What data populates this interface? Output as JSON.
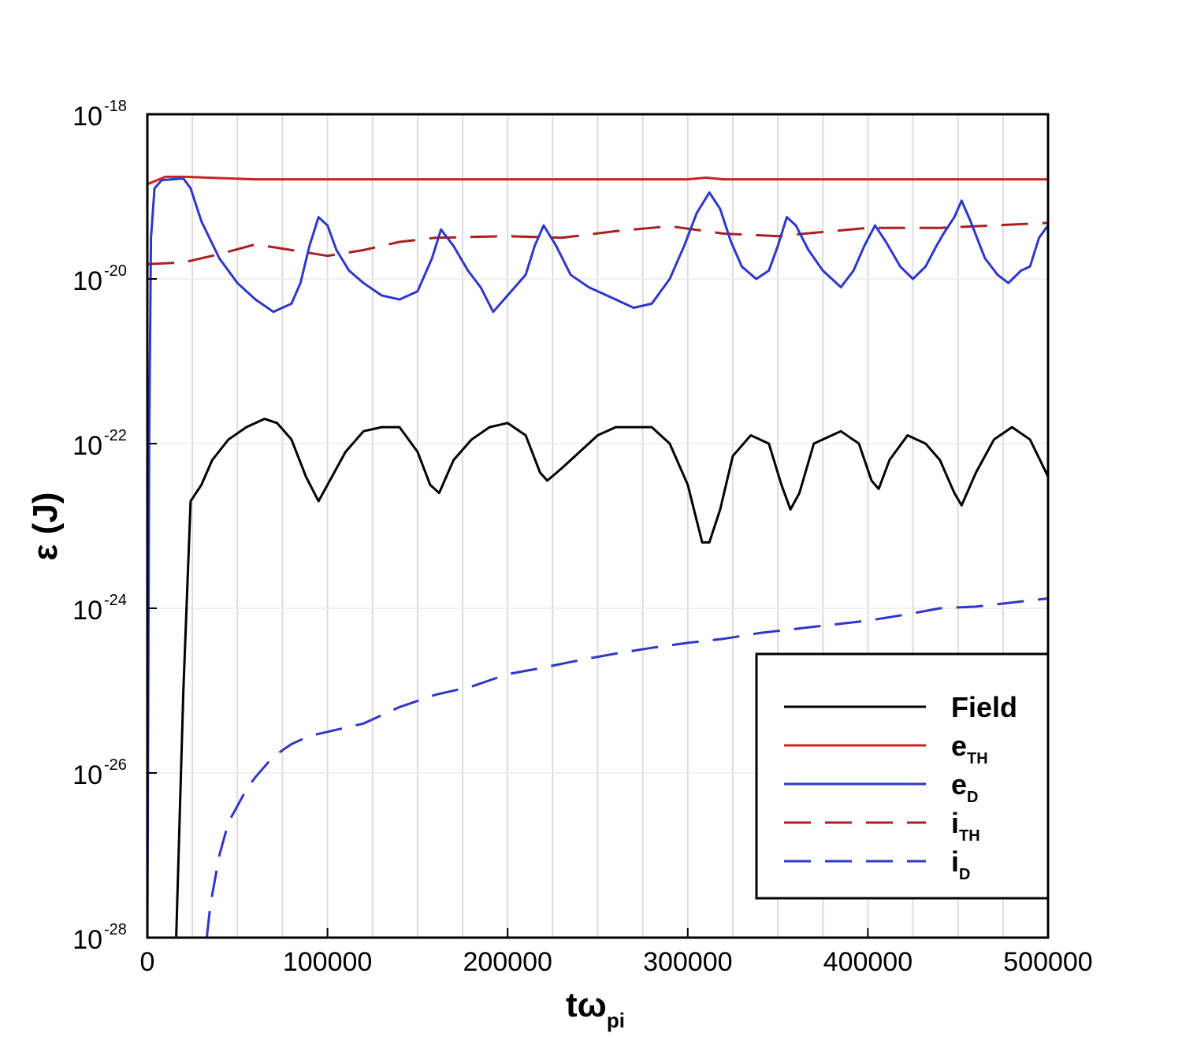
{
  "chart_data": {
    "type": "line",
    "title": "",
    "xlabel": "tω",
    "xlabel_sub": "pi",
    "ylabel": "ε (J)",
    "xlim": [
      0,
      500000
    ],
    "ylim": [
      1e-28,
      1e-18
    ],
    "ylog": true,
    "grid": "vertical",
    "x_ticks": [
      "0",
      "100000",
      "200000",
      "300000",
      "400000",
      "500000"
    ],
    "y_ticks": [
      {
        "base": "10",
        "exp": "-18",
        "value": -18
      },
      {
        "base": "10",
        "exp": "-20",
        "value": -20
      },
      {
        "base": "10",
        "exp": "-22",
        "value": -22
      },
      {
        "base": "10",
        "exp": "-24",
        "value": -24
      },
      {
        "base": "10",
        "exp": "-26",
        "value": -26
      },
      {
        "base": "10",
        "exp": "-28",
        "value": -28
      }
    ],
    "legend_position": "bottom-right",
    "series": [
      {
        "name": "Field",
        "name_sub": "",
        "color": "#000000",
        "dash": "solid",
        "log10_x_y": [
          [
            16000,
            -28.0
          ],
          [
            20000,
            -25.0
          ],
          [
            24000,
            -22.7
          ],
          [
            30000,
            -22.5
          ],
          [
            36000,
            -22.2
          ],
          [
            45000,
            -21.95
          ],
          [
            55000,
            -21.8
          ],
          [
            65000,
            -21.7
          ],
          [
            72000,
            -21.75
          ],
          [
            80000,
            -21.95
          ],
          [
            88000,
            -22.4
          ],
          [
            95000,
            -22.7
          ],
          [
            100000,
            -22.5
          ],
          [
            110000,
            -22.1
          ],
          [
            120000,
            -21.85
          ],
          [
            130000,
            -21.8
          ],
          [
            140000,
            -21.8
          ],
          [
            150000,
            -22.1
          ],
          [
            157000,
            -22.5
          ],
          [
            162000,
            -22.6
          ],
          [
            170000,
            -22.2
          ],
          [
            180000,
            -21.95
          ],
          [
            190000,
            -21.8
          ],
          [
            200000,
            -21.75
          ],
          [
            210000,
            -21.9
          ],
          [
            218000,
            -22.35
          ],
          [
            222000,
            -22.45
          ],
          [
            230000,
            -22.3
          ],
          [
            240000,
            -22.1
          ],
          [
            250000,
            -21.9
          ],
          [
            260000,
            -21.8
          ],
          [
            280000,
            -21.8
          ],
          [
            290000,
            -22.0
          ],
          [
            300000,
            -22.5
          ],
          [
            308000,
            -23.2
          ],
          [
            312000,
            -23.2
          ],
          [
            318000,
            -22.8
          ],
          [
            325000,
            -22.15
          ],
          [
            335000,
            -21.9
          ],
          [
            345000,
            -22.0
          ],
          [
            352000,
            -22.5
          ],
          [
            357000,
            -22.8
          ],
          [
            362000,
            -22.6
          ],
          [
            370000,
            -22.0
          ],
          [
            385000,
            -21.85
          ],
          [
            395000,
            -22.0
          ],
          [
            402000,
            -22.45
          ],
          [
            406000,
            -22.55
          ],
          [
            412000,
            -22.2
          ],
          [
            422000,
            -21.9
          ],
          [
            432000,
            -22.0
          ],
          [
            440000,
            -22.2
          ],
          [
            448000,
            -22.6
          ],
          [
            452000,
            -22.75
          ],
          [
            460000,
            -22.35
          ],
          [
            470000,
            -21.95
          ],
          [
            480000,
            -21.8
          ],
          [
            490000,
            -21.95
          ],
          [
            500000,
            -22.4
          ]
        ]
      },
      {
        "name": "e",
        "name_sub": "TH",
        "color": "#cc2222",
        "dash": "solid",
        "log10_x_y": [
          [
            0,
            -18.85
          ],
          [
            10000,
            -18.76
          ],
          [
            20000,
            -18.76
          ],
          [
            60000,
            -18.79
          ],
          [
            100000,
            -18.79
          ],
          [
            200000,
            -18.79
          ],
          [
            300000,
            -18.79
          ],
          [
            310000,
            -18.77
          ],
          [
            320000,
            -18.79
          ],
          [
            400000,
            -18.79
          ],
          [
            500000,
            -18.79
          ]
        ]
      },
      {
        "name": "e",
        "name_sub": "D",
        "color": "#2e37c8",
        "dash": "solid",
        "log10_x_y": [
          [
            0,
            -28.0
          ],
          [
            1000,
            -22.0
          ],
          [
            2000,
            -19.5
          ],
          [
            4000,
            -18.9
          ],
          [
            8000,
            -18.8
          ],
          [
            20000,
            -18.78
          ],
          [
            24000,
            -18.9
          ],
          [
            30000,
            -19.3
          ],
          [
            40000,
            -19.75
          ],
          [
            50000,
            -20.05
          ],
          [
            60000,
            -20.25
          ],
          [
            70000,
            -20.4
          ],
          [
            80000,
            -20.3
          ],
          [
            85000,
            -20.05
          ],
          [
            90000,
            -19.6
          ],
          [
            95000,
            -19.25
          ],
          [
            100000,
            -19.35
          ],
          [
            105000,
            -19.65
          ],
          [
            112000,
            -19.9
          ],
          [
            120000,
            -20.05
          ],
          [
            130000,
            -20.2
          ],
          [
            140000,
            -20.25
          ],
          [
            150000,
            -20.15
          ],
          [
            158000,
            -19.75
          ],
          [
            163000,
            -19.4
          ],
          [
            170000,
            -19.6
          ],
          [
            178000,
            -19.9
          ],
          [
            185000,
            -20.1
          ],
          [
            192000,
            -20.4
          ],
          [
            200000,
            -20.2
          ],
          [
            210000,
            -19.95
          ],
          [
            215000,
            -19.6
          ],
          [
            220000,
            -19.35
          ],
          [
            227000,
            -19.6
          ],
          [
            235000,
            -19.95
          ],
          [
            245000,
            -20.1
          ],
          [
            255000,
            -20.2
          ],
          [
            270000,
            -20.35
          ],
          [
            280000,
            -20.3
          ],
          [
            290000,
            -20.0
          ],
          [
            298000,
            -19.6
          ],
          [
            305000,
            -19.2
          ],
          [
            312000,
            -18.95
          ],
          [
            318000,
            -19.15
          ],
          [
            324000,
            -19.55
          ],
          [
            330000,
            -19.85
          ],
          [
            338000,
            -20.0
          ],
          [
            345000,
            -19.9
          ],
          [
            350000,
            -19.6
          ],
          [
            355000,
            -19.25
          ],
          [
            360000,
            -19.35
          ],
          [
            367000,
            -19.65
          ],
          [
            375000,
            -19.9
          ],
          [
            385000,
            -20.1
          ],
          [
            392000,
            -19.9
          ],
          [
            398000,
            -19.6
          ],
          [
            404000,
            -19.35
          ],
          [
            410000,
            -19.55
          ],
          [
            418000,
            -19.85
          ],
          [
            425000,
            -20.0
          ],
          [
            432000,
            -19.85
          ],
          [
            438000,
            -19.6
          ],
          [
            442000,
            -19.45
          ],
          [
            448000,
            -19.25
          ],
          [
            452000,
            -19.05
          ],
          [
            457000,
            -19.3
          ],
          [
            465000,
            -19.75
          ],
          [
            472000,
            -19.95
          ],
          [
            478000,
            -20.05
          ],
          [
            485000,
            -19.9
          ],
          [
            490000,
            -19.85
          ],
          [
            495000,
            -19.5
          ],
          [
            500000,
            -19.35
          ]
        ]
      },
      {
        "name": "i",
        "name_sub": "TH",
        "color": "#aa1f1f",
        "dash": "dashed",
        "log10_x_y": [
          [
            0,
            -19.82
          ],
          [
            20000,
            -19.8
          ],
          [
            40000,
            -19.7
          ],
          [
            60000,
            -19.58
          ],
          [
            80000,
            -19.65
          ],
          [
            100000,
            -19.72
          ],
          [
            120000,
            -19.65
          ],
          [
            140000,
            -19.55
          ],
          [
            160000,
            -19.5
          ],
          [
            200000,
            -19.48
          ],
          [
            230000,
            -19.5
          ],
          [
            260000,
            -19.42
          ],
          [
            290000,
            -19.36
          ],
          [
            320000,
            -19.45
          ],
          [
            350000,
            -19.48
          ],
          [
            380000,
            -19.42
          ],
          [
            400000,
            -19.38
          ],
          [
            420000,
            -19.38
          ],
          [
            440000,
            -19.38
          ],
          [
            460000,
            -19.36
          ],
          [
            480000,
            -19.34
          ],
          [
            500000,
            -19.32
          ]
        ]
      },
      {
        "name": "i",
        "name_sub": "D",
        "color": "#2e37c8",
        "dash": "dashed",
        "log10_x_y": [
          [
            33000,
            -28.0
          ],
          [
            35000,
            -27.6
          ],
          [
            40000,
            -27.0
          ],
          [
            45000,
            -26.6
          ],
          [
            50000,
            -26.4
          ],
          [
            55000,
            -26.2
          ],
          [
            60000,
            -26.05
          ],
          [
            70000,
            -25.8
          ],
          [
            80000,
            -25.65
          ],
          [
            90000,
            -25.55
          ],
          [
            100000,
            -25.5
          ],
          [
            120000,
            -25.4
          ],
          [
            140000,
            -25.2
          ],
          [
            160000,
            -25.05
          ],
          [
            180000,
            -24.95
          ],
          [
            200000,
            -24.8
          ],
          [
            220000,
            -24.72
          ],
          [
            240000,
            -24.63
          ],
          [
            260000,
            -24.55
          ],
          [
            280000,
            -24.48
          ],
          [
            300000,
            -24.42
          ],
          [
            320000,
            -24.37
          ],
          [
            340000,
            -24.3
          ],
          [
            360000,
            -24.25
          ],
          [
            380000,
            -24.2
          ],
          [
            400000,
            -24.15
          ],
          [
            420000,
            -24.08
          ],
          [
            440000,
            -24.0
          ],
          [
            460000,
            -23.98
          ],
          [
            480000,
            -23.93
          ],
          [
            500000,
            -23.88
          ]
        ]
      }
    ]
  }
}
